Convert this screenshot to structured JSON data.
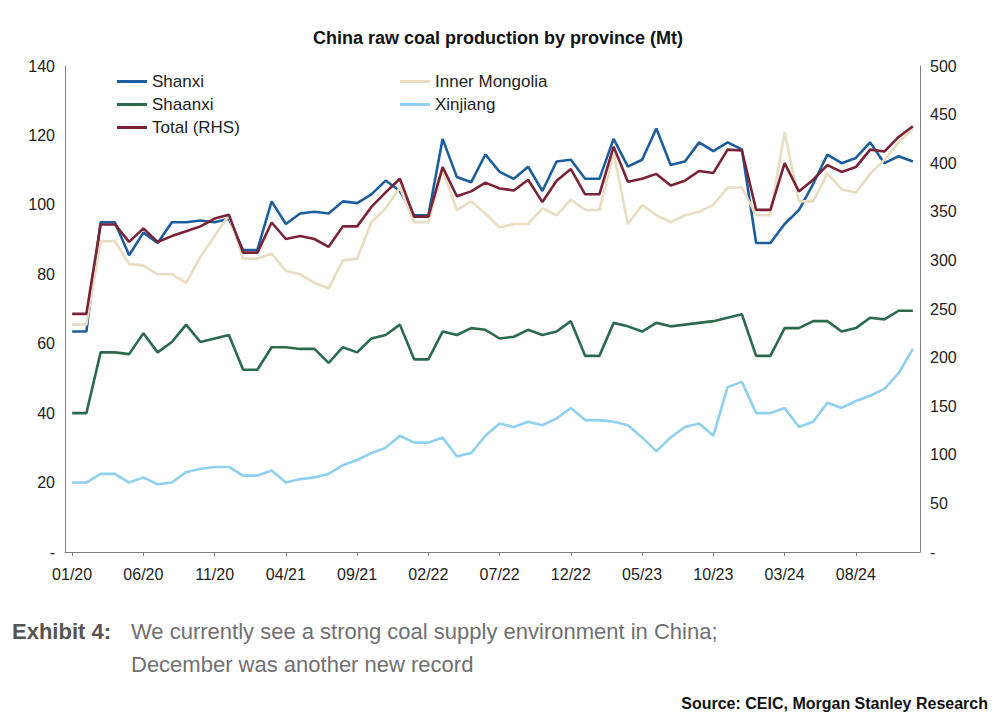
{
  "chart_data": {
    "type": "line",
    "title": "China raw coal production by province (Mt)",
    "caption": {
      "label": "Exhibit 4:",
      "text": [
        "We currently see a strong coal supply environment in China;",
        "December was another new record"
      ]
    },
    "source": "Source: CEIC, Morgan Stanley Research",
    "categories": [
      "01/20",
      null,
      null,
      null,
      null,
      "06/20",
      null,
      null,
      null,
      null,
      "11/20",
      null,
      null,
      null,
      null,
      "04/21",
      null,
      null,
      null,
      null,
      "09/21",
      null,
      null,
      null,
      null,
      "02/22",
      null,
      null,
      null,
      null,
      "07/22",
      null,
      null,
      null,
      null,
      "12/22",
      null,
      null,
      null,
      null,
      "05/23",
      null,
      null,
      null,
      null,
      "10/23",
      null,
      null,
      null,
      null,
      "03/24",
      null,
      null,
      null,
      null,
      "08/24",
      null,
      null,
      null,
      null
    ],
    "series": [
      {
        "name": "Shanxi",
        "color": "#1c5e9c",
        "values": [
          63.5,
          63.5,
          95,
          95,
          85.5,
          92,
          89,
          95,
          95,
          95.5,
          95,
          96,
          87,
          87,
          101,
          94.5,
          97.5,
          98,
          97.5,
          101,
          100.5,
          103,
          107,
          104,
          97,
          97,
          119,
          108,
          106.5,
          114.5,
          109.5,
          107.5,
          111,
          104,
          112.5,
          113,
          107.5,
          107.5,
          119,
          111,
          113,
          122,
          111.5,
          112.5,
          118,
          115.5,
          118,
          116,
          89,
          89,
          94.5,
          98.5,
          106,
          114.5,
          112,
          113.5,
          118,
          112,
          114,
          112.5
        ]
      },
      {
        "name": "Inner Mongolia",
        "color": "#e9ddc1",
        "values": [
          65.5,
          65.5,
          89.5,
          89.5,
          83,
          82.5,
          80,
          80,
          77.5,
          85,
          91,
          97,
          84.5,
          84.5,
          86,
          81,
          80,
          77.5,
          76,
          84,
          84.5,
          95,
          99,
          105,
          95,
          95,
          110,
          98.5,
          101,
          97.5,
          93.5,
          94.5,
          94.5,
          99,
          97,
          101.5,
          98.5,
          98.5,
          115,
          94.5,
          100,
          97,
          95,
          97,
          98,
          100,
          105,
          105,
          97,
          97,
          121,
          101,
          101,
          109,
          104.5,
          103.5,
          109,
          113,
          118,
          122
        ]
      },
      {
        "name": "Shaanxi",
        "color": "#2b6a4e",
        "values": [
          40,
          40,
          57.5,
          57.5,
          57,
          63,
          57.5,
          60.5,
          65.5,
          60.5,
          61.5,
          62.5,
          52.5,
          52.5,
          59,
          59,
          58.5,
          58.5,
          54.5,
          59,
          57.5,
          61.5,
          62.5,
          65.5,
          55.5,
          55.5,
          63.5,
          62.5,
          64.5,
          64,
          61.5,
          62,
          64,
          62.5,
          63.5,
          66.5,
          56.5,
          56.5,
          66,
          65,
          63.5,
          66,
          65,
          65.5,
          66,
          66.5,
          67.5,
          68.5,
          56.5,
          56.5,
          64.5,
          64.5,
          66.5,
          66.5,
          63.5,
          64.5,
          67.5,
          67,
          69.5,
          69.5
        ]
      },
      {
        "name": "Xinjiang",
        "color": "#8fd0ef",
        "values": [
          20,
          20,
          22.5,
          22.5,
          20,
          21.5,
          19.5,
          20,
          23,
          24,
          24.5,
          24.5,
          22,
          22,
          23.5,
          20,
          21,
          21.5,
          22.5,
          25,
          26.5,
          28.5,
          30,
          33.5,
          31.5,
          31.5,
          33,
          27.5,
          28.5,
          33.5,
          37,
          36,
          37.5,
          36.5,
          38.5,
          41.5,
          38,
          38,
          37.5,
          36.5,
          33,
          29,
          33,
          36,
          37,
          33.5,
          47.5,
          49,
          40,
          40,
          41.5,
          36,
          37.5,
          43,
          41.5,
          43.5,
          45,
          47,
          51.5,
          58.5
        ]
      },
      {
        "name": "Total (RHS)",
        "color": "#7b2336",
        "axis": "y2",
        "values": [
          245,
          245,
          337,
          337,
          319,
          333,
          319,
          325,
          330,
          335,
          343,
          347,
          308,
          308,
          339,
          322,
          325,
          322,
          314,
          335,
          335,
          355,
          370,
          384,
          345,
          345,
          396,
          366,
          371,
          380,
          374,
          372,
          383,
          360,
          382,
          394,
          368,
          368,
          417,
          381,
          384,
          389,
          377,
          382,
          392,
          390,
          414,
          413,
          352,
          352,
          400,
          371,
          383,
          398,
          391,
          396,
          414,
          412,
          427,
          438
        ]
      }
    ],
    "ylim": [
      0,
      140
    ],
    "yticks": [
      {
        "value": 0,
        "label": "-"
      },
      20,
      40,
      60,
      80,
      100,
      120,
      140
    ],
    "y2lim": [
      0,
      500
    ],
    "y2ticks": [
      {
        "value": 0,
        "label": "-"
      },
      50,
      100,
      150,
      200,
      250,
      300,
      350,
      400,
      450,
      500
    ],
    "grid": false,
    "legend": "upper left"
  }
}
